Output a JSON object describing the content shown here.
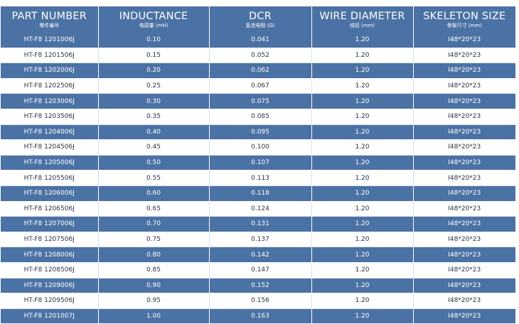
{
  "headers": [
    {
      "main": "PART NUMBER",
      "sub": "零件编号"
    },
    {
      "main": "INDUCTANCE",
      "sub": "电感量 (mH)"
    },
    {
      "main": "DCR",
      "sub": "直流电阻 (Ω)"
    },
    {
      "main": "WIRE DIAMETER",
      "sub": "线径 (mm)"
    },
    {
      "main": "SKELETON SIZE",
      "sub": "骨架尺寸 (mm)"
    }
  ],
  "rows": [
    [
      "HT-F8 1201006J",
      "0.10",
      "0.041",
      "1.20",
      "I48*20*23"
    ],
    [
      "HT-F8 1201506J",
      "0.15",
      "0.052",
      "1.20",
      "I48*20*23"
    ],
    [
      "HT-F8 1202006J",
      "0.20",
      "0.062",
      "1.20",
      "I48*20*23"
    ],
    [
      "HT-F8 1202506J",
      "0.25",
      "0.067",
      "1.20",
      "I48*20*23"
    ],
    [
      "HT-F8 1203006J",
      "0.30",
      "0.075",
      "1.20",
      "I48*20*23"
    ],
    [
      "HT-F8 1203506J",
      "0.35",
      "0.085",
      "1.20",
      "I48*20*23"
    ],
    [
      "HT-F8 1204006J",
      "0.40",
      "0.095",
      "1.20",
      "I48*20*23"
    ],
    [
      "HT-F8 1204506J",
      "0.45",
      "0.100",
      "1.20",
      "I48*20*23"
    ],
    [
      "HT-F8 1205006J",
      "0.50",
      "0.107",
      "1.20",
      "I48*20*23"
    ],
    [
      "HT-F8 1205506J",
      "0.55",
      "0.113",
      "1.20",
      "I48*20*23"
    ],
    [
      "HT-F8 1206006J",
      "0.60",
      "0.118",
      "1.20",
      "I48*20*23"
    ],
    [
      "HT-F8 1206506J",
      "0.65",
      "0.124",
      "1.20",
      "I48*20*23"
    ],
    [
      "HT-F8 1207006J",
      "0.70",
      "0.131",
      "1.20",
      "I48*20*23"
    ],
    [
      "HT-F8 1207506J",
      "0.75",
      "0.137",
      "1.20",
      "I48*20*23"
    ],
    [
      "HT-F8 1208006J",
      "0.80",
      "0.142",
      "1.20",
      "I48*20*23"
    ],
    [
      "HT-F8 1208506J",
      "0.85",
      "0.147",
      "1.20",
      "I48*20*23"
    ],
    [
      "HT-F8 1209006J",
      "0.90",
      "0.152",
      "1.20",
      "I48*20*23"
    ],
    [
      "HT-F8 1209506J",
      "0.95",
      "0.156",
      "1.20",
      "I48*20*23"
    ],
    [
      "HT-F8 1201007J",
      "1.00",
      "0.163",
      "1.20",
      "I48*20*23"
    ]
  ],
  "colors": {
    "header_bg": "#4b72a4",
    "band_dark": "#4b72a4",
    "band_light": "#ffffff"
  }
}
